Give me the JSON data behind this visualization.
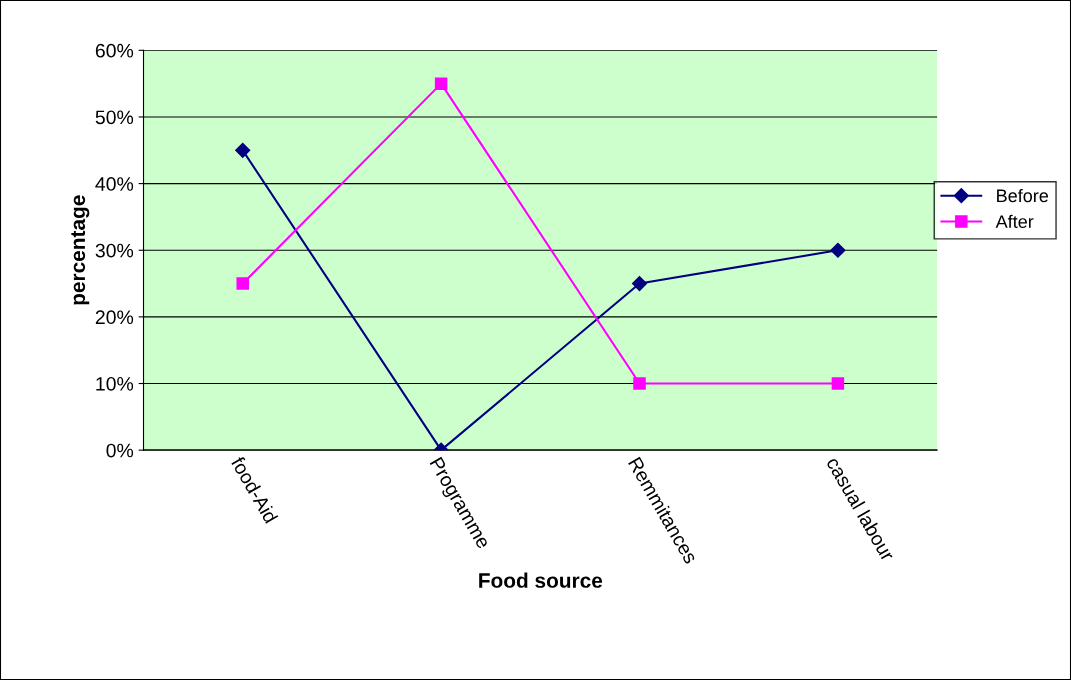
{
  "chart_data": {
    "type": "line",
    "xlabel": "Food source",
    "ylabel": "percentage",
    "categories": [
      "food-Aid",
      "Programme",
      "Remmitances",
      "casual labour"
    ],
    "series": [
      {
        "name": "Before",
        "color": "#000080",
        "marker": "diamond",
        "values": [
          45,
          0,
          25,
          30
        ]
      },
      {
        "name": "After",
        "color": "#ff00ff",
        "marker": "square",
        "values": [
          25,
          55,
          10,
          10
        ]
      }
    ],
    "ylim": [
      0,
      60
    ],
    "yticks": [
      {
        "value": 0,
        "label": "0%"
      },
      {
        "value": 10,
        "label": "10%"
      },
      {
        "value": 20,
        "label": "20%"
      },
      {
        "value": 30,
        "label": "30%"
      },
      {
        "value": 40,
        "label": "40%"
      },
      {
        "value": 50,
        "label": "50%"
      },
      {
        "value": 60,
        "label": "60%"
      }
    ],
    "grid": "y",
    "legend": "right"
  }
}
